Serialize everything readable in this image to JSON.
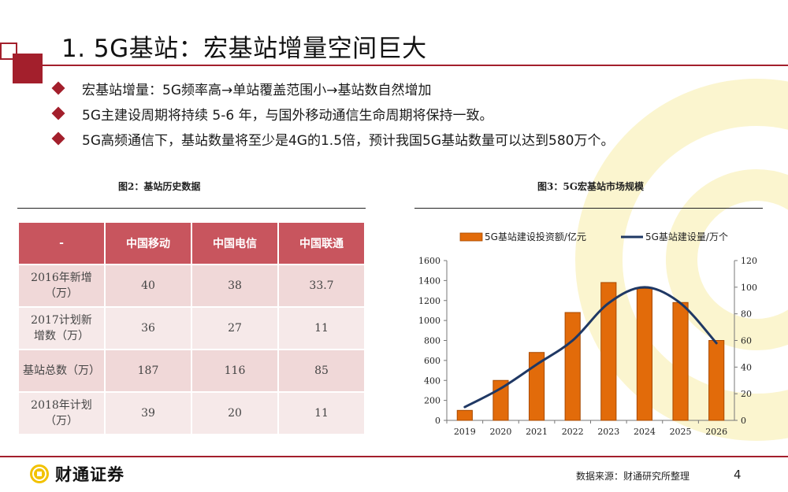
{
  "title": "1. 5G基站：宏基站增量空间巨大",
  "bullets": [
    "宏基站增量：5G频率高→单站覆盖范围小→基站数自然增加",
    "5G主建设周期将持续 5-6 年，与国外移动通信生命周期将保持一致。",
    "5G高频通信下，基站数量将至少是4G的1.5倍，预计我国5G基站数量可以达到580万个。"
  ],
  "figure_left_caption": "图2：基站历史数据",
  "figure_right_caption": "图3：5G宏基站市场规模",
  "history_table": {
    "headers": [
      "-",
      "中国移动",
      "中国电信",
      "中国联通"
    ],
    "rows": [
      {
        "label": "2016年新增（万）",
        "values": [
          "40",
          "38",
          "33.7"
        ]
      },
      {
        "label": "2017计划新增数（万）",
        "values": [
          "36",
          "27",
          "11"
        ]
      },
      {
        "label": "基站总数（万）",
        "values": [
          "187",
          "116",
          "85"
        ]
      },
      {
        "label": "2018年计划（万）",
        "values": [
          "39",
          "20",
          "11"
        ]
      }
    ]
  },
  "chart_data": {
    "type": "bar+line",
    "title": "5G宏基站市场规模",
    "categories": [
      "2019",
      "2020",
      "2021",
      "2022",
      "2023",
      "2024",
      "2025",
      "2026"
    ],
    "series": [
      {
        "name": "5G基站建设投资额/亿元",
        "type": "bar",
        "axis": "left",
        "color": "#e26b0a",
        "values": [
          100,
          400,
          680,
          1080,
          1380,
          1320,
          1180,
          800
        ]
      },
      {
        "name": "5G基站建设量/万个",
        "type": "line",
        "axis": "right",
        "color": "#1f3864",
        "values": [
          10,
          24,
          42,
          60,
          88,
          100,
          88,
          58
        ]
      }
    ],
    "y_left": {
      "min": 0,
      "max": 1600,
      "ticks": [
        0,
        200,
        400,
        600,
        800,
        1000,
        1200,
        1400,
        1600
      ]
    },
    "y_right": {
      "min": 0,
      "max": 120,
      "ticks": [
        0,
        20,
        40,
        60,
        80,
        100,
        120
      ]
    },
    "legend_position": "top"
  },
  "footer": {
    "logo_text": "财通证券",
    "source": "数据来源：财通研究所整理",
    "page_number": "4"
  },
  "colors": {
    "brand": "#a31f2c",
    "header_fill": "#c8555e",
    "bar": "#e26b0a",
    "line": "#1f3864"
  }
}
